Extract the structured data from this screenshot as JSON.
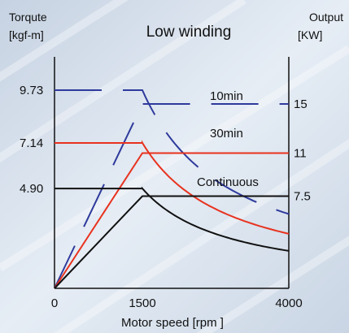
{
  "chart_data": {
    "type": "line",
    "title": "Low winding",
    "xlabel": "Motor speed [rpm ]",
    "ylabel_left": [
      "Torqute",
      "[kgf-m]"
    ],
    "ylabel_right": [
      "Output",
      "[KW]"
    ],
    "xlim": [
      0,
      4000
    ],
    "x_ticks": [
      "0",
      "1500",
      "4000"
    ],
    "left_ticks": [
      "9.73",
      "7.14",
      "4.90"
    ],
    "right_ticks": [
      "15",
      "11",
      "7.5"
    ],
    "grid": false,
    "colors": {
      "torque_10min": "#2e3a9c",
      "torque_30min": "#e8321e",
      "torque_continuous": "#111111",
      "output_10min": "#2e3a9c",
      "output_30min": "#e8321e",
      "output_continuous": "#111111",
      "axes": "#111111"
    },
    "series_labels": {
      "s10min": "10min",
      "s30min": "30min",
      "continuous": "Continuous"
    },
    "torque": {
      "unit": "kgf-m",
      "10min": {
        "x": [
          0,
          1500,
          2000,
          3000,
          4000
        ],
        "y": [
          9.73,
          9.73,
          7.3,
          4.9,
          3.65
        ]
      },
      "30min": {
        "x": [
          0,
          1500,
          2000,
          3000,
          4000
        ],
        "y": [
          7.14,
          7.14,
          5.36,
          3.57,
          2.68
        ]
      },
      "continuous": {
        "x": [
          0,
          1500,
          2000,
          3000,
          4000
        ],
        "y": [
          4.9,
          4.9,
          3.65,
          2.45,
          1.83
        ]
      }
    },
    "output": {
      "unit": "KW",
      "10min": {
        "x": [
          0,
          1500,
          4000
        ],
        "y": [
          0,
          15,
          15
        ]
      },
      "30min": {
        "x": [
          0,
          1500,
          4000
        ],
        "y": [
          0,
          11,
          11
        ]
      },
      "continuous": {
        "x": [
          0,
          1500,
          4000
        ],
        "y": [
          0,
          7.5,
          7.5
        ]
      }
    }
  }
}
